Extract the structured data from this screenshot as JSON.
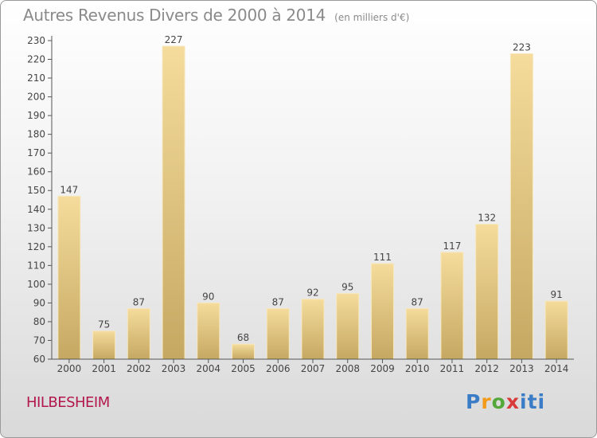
{
  "header": {
    "title": "Autres Revenus Divers de 2000 à 2014",
    "subtitle": "(en milliers d'€)"
  },
  "footer": {
    "commune": "HILBESHEIM",
    "logo": "Proxiti"
  },
  "colors": {
    "bar_light": "#f5dc9c",
    "bar_dark": "#c5a862",
    "commune": "#b2184e",
    "text": "#8a8a8a"
  },
  "chart_data": {
    "type": "bar",
    "title": "Autres Revenus Divers de 2000 à 2014",
    "subtitle": "(en milliers d'€)",
    "categories": [
      "2000",
      "2001",
      "2002",
      "2003",
      "2004",
      "2005",
      "2006",
      "2007",
      "2008",
      "2009",
      "2010",
      "2011",
      "2012",
      "2013",
      "2014"
    ],
    "values": [
      147,
      75,
      87,
      227,
      90,
      68,
      87,
      92,
      95,
      111,
      87,
      117,
      132,
      223,
      91
    ],
    "ylim": [
      60,
      230
    ],
    "yticks": [
      60,
      70,
      80,
      90,
      100,
      110,
      120,
      130,
      140,
      150,
      160,
      170,
      180,
      190,
      200,
      210,
      220,
      230
    ],
    "grid": false,
    "data_labels": true
  }
}
